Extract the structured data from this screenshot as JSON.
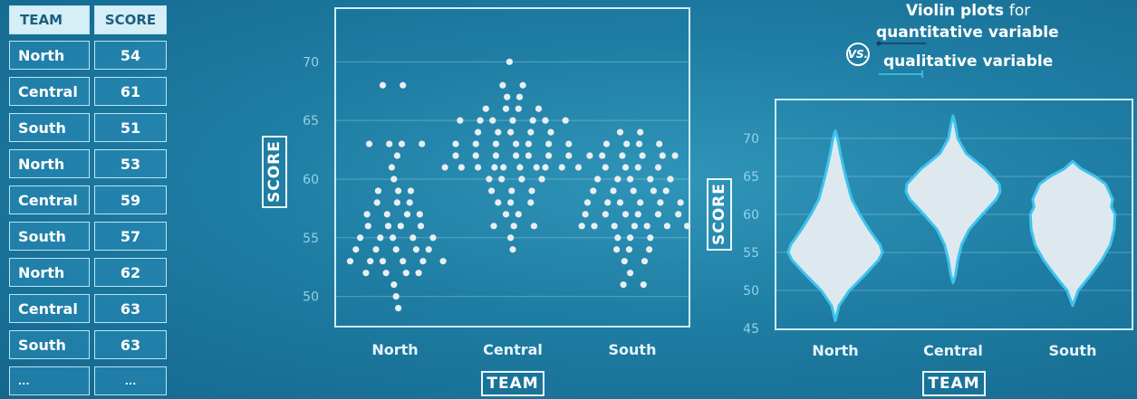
{
  "table": {
    "headers": [
      "TEAM",
      "SCORE"
    ],
    "rows": [
      {
        "team": "North",
        "score": "54"
      },
      {
        "team": "Central",
        "score": "61"
      },
      {
        "team": "South",
        "score": "51"
      },
      {
        "team": "North",
        "score": "53"
      },
      {
        "team": "Central",
        "score": "59"
      },
      {
        "team": "South",
        "score": "57"
      },
      {
        "team": "North",
        "score": "62"
      },
      {
        "team": "Central",
        "score": "63"
      },
      {
        "team": "South",
        "score": "63"
      },
      {
        "team": "...",
        "score": "..."
      }
    ]
  },
  "title": {
    "line1_bold": "Violin plots",
    "line1_rest": "for",
    "line2": "quantitative variable",
    "vs": "VS.",
    "line3": "qualitative variable"
  },
  "colors": {
    "background": "#1f7da3",
    "panel_border": "#cdeef8",
    "dot": "#e8eef2",
    "violin_fill": "#dde9ef",
    "violin_edge": "#3ec3ee",
    "tick": "#8fd3ea"
  },
  "chart_data": [
    {
      "type": "scatter",
      "categories": [
        "North",
        "Central",
        "South"
      ],
      "xlabel": "TEAM",
      "ylabel": "SCORE",
      "yticks": [
        50,
        55,
        60,
        65,
        70
      ],
      "ylim": [
        47.5,
        74.5
      ],
      "grid": true,
      "series": [
        {
          "values": [
            68,
            68,
            63,
            63,
            63,
            63,
            62,
            61,
            60,
            59,
            59,
            59,
            58,
            58,
            58,
            57,
            57,
            57,
            57,
            56,
            56,
            56,
            56,
            55,
            55,
            55,
            55,
            55,
            54,
            54,
            54,
            54,
            54,
            53,
            53,
            53,
            53,
            53,
            53,
            52,
            52,
            52,
            52,
            51,
            50,
            49
          ]
        },
        {
          "values": [
            70,
            68,
            68,
            67,
            67,
            66,
            66,
            66,
            66,
            65,
            65,
            65,
            65,
            65,
            65,
            65,
            64,
            64,
            64,
            64,
            64,
            63,
            63,
            63,
            63,
            63,
            63,
            63,
            62,
            62,
            62,
            62,
            62,
            62,
            62,
            61,
            61,
            61,
            61,
            61,
            61,
            61,
            61,
            61,
            61,
            60,
            60,
            60,
            60,
            59,
            59,
            59,
            58,
            58,
            58,
            57,
            57,
            56,
            56,
            56,
            55,
            54
          ]
        },
        {
          "values": [
            64,
            64,
            63,
            63,
            63,
            63,
            62,
            62,
            62,
            62,
            62,
            62,
            61,
            61,
            61,
            61,
            60,
            60,
            60,
            60,
            60,
            59,
            59,
            59,
            59,
            59,
            58,
            58,
            58,
            58,
            58,
            58,
            57,
            57,
            57,
            57,
            57,
            57,
            56,
            56,
            56,
            56,
            56,
            56,
            56,
            55,
            55,
            55,
            54,
            54,
            54,
            53,
            53,
            52,
            51,
            51
          ]
        }
      ]
    },
    {
      "type": "violin",
      "categories": [
        "North",
        "Central",
        "South"
      ],
      "xlabel": "TEAM",
      "ylabel": "SCORE",
      "yticks": [
        45,
        50,
        55,
        60,
        65,
        70
      ],
      "ylim": [
        45,
        75
      ],
      "grid": true,
      "series": [
        {
          "min": 46,
          "max": 71,
          "profile": [
            [
              46,
              0
            ],
            [
              48,
              0.08
            ],
            [
              50,
              0.3
            ],
            [
              52,
              0.62
            ],
            [
              54,
              0.92
            ],
            [
              55,
              1.0
            ],
            [
              56,
              0.95
            ],
            [
              58,
              0.72
            ],
            [
              60,
              0.52
            ],
            [
              62,
              0.35
            ],
            [
              64,
              0.26
            ],
            [
              66,
              0.18
            ],
            [
              68,
              0.11
            ],
            [
              70,
              0.05
            ],
            [
              71,
              0
            ]
          ]
        },
        {
          "min": 51,
          "max": 73,
          "profile": [
            [
              51,
              0
            ],
            [
              52,
              0.05
            ],
            [
              54,
              0.1
            ],
            [
              56,
              0.18
            ],
            [
              58,
              0.34
            ],
            [
              60,
              0.62
            ],
            [
              62,
              0.92
            ],
            [
              63,
              1.0
            ],
            [
              64,
              0.98
            ],
            [
              66,
              0.68
            ],
            [
              68,
              0.28
            ],
            [
              70,
              0.1
            ],
            [
              72,
              0.04
            ],
            [
              73,
              0
            ]
          ]
        },
        {
          "min": 48,
          "max": 67,
          "profile": [
            [
              48,
              0
            ],
            [
              50,
              0.12
            ],
            [
              52,
              0.38
            ],
            [
              54,
              0.62
            ],
            [
              56,
              0.8
            ],
            [
              58,
              0.88
            ],
            [
              60,
              0.9
            ],
            [
              61,
              0.82
            ],
            [
              62,
              0.85
            ],
            [
              64,
              0.7
            ],
            [
              65,
              0.48
            ],
            [
              66,
              0.18
            ],
            [
              67,
              0
            ]
          ]
        }
      ]
    }
  ]
}
